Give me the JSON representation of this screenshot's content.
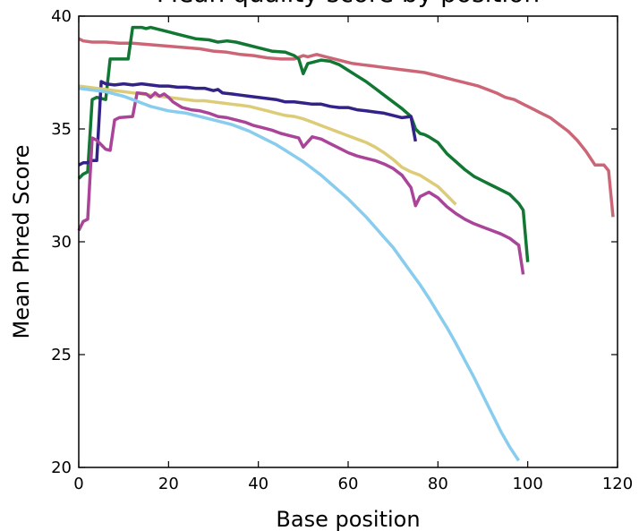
{
  "chart_data": {
    "type": "line",
    "title": "Mean quality score by position",
    "xlabel": "Base position",
    "ylabel": "Mean Phred Score",
    "xlim": [
      0,
      120
    ],
    "ylim": [
      20,
      40
    ],
    "xticks": [
      0,
      20,
      40,
      60,
      80,
      100,
      120
    ],
    "yticks": [
      20,
      25,
      30,
      35,
      40
    ],
    "xtick_labels": [
      "0",
      "20",
      "40",
      "60",
      "80",
      "100",
      "120"
    ],
    "ytick_labels": [
      "20",
      "25",
      "30",
      "35",
      "40"
    ],
    "grid": false,
    "legend": "none",
    "series": [
      {
        "color": "#cc6677",
        "points": [
          [
            0,
            39.0
          ],
          [
            1,
            38.9
          ],
          [
            3,
            38.85
          ],
          [
            6,
            38.85
          ],
          [
            9,
            38.8
          ],
          [
            12,
            38.8
          ],
          [
            15,
            38.75
          ],
          [
            18,
            38.7
          ],
          [
            21,
            38.65
          ],
          [
            24,
            38.6
          ],
          [
            27,
            38.55
          ],
          [
            30,
            38.45
          ],
          [
            33,
            38.4
          ],
          [
            36,
            38.3
          ],
          [
            39,
            38.25
          ],
          [
            42,
            38.15
          ],
          [
            45,
            38.1
          ],
          [
            48,
            38.1
          ],
          [
            50,
            38.25
          ],
          [
            51,
            38.2
          ],
          [
            53,
            38.3
          ],
          [
            55,
            38.2
          ],
          [
            57,
            38.1
          ],
          [
            59,
            38.0
          ],
          [
            61,
            37.9
          ],
          [
            63,
            37.85
          ],
          [
            65,
            37.8
          ],
          [
            67,
            37.75
          ],
          [
            69,
            37.7
          ],
          [
            71,
            37.65
          ],
          [
            73,
            37.6
          ],
          [
            75,
            37.55
          ],
          [
            77,
            37.5
          ],
          [
            79,
            37.4
          ],
          [
            81,
            37.3
          ],
          [
            83,
            37.2
          ],
          [
            85,
            37.1
          ],
          [
            87,
            37.0
          ],
          [
            89,
            36.9
          ],
          [
            91,
            36.75
          ],
          [
            93,
            36.6
          ],
          [
            95,
            36.4
          ],
          [
            97,
            36.3
          ],
          [
            99,
            36.1
          ],
          [
            101,
            35.9
          ],
          [
            103,
            35.7
          ],
          [
            105,
            35.5
          ],
          [
            107,
            35.2
          ],
          [
            109,
            34.9
          ],
          [
            111,
            34.5
          ],
          [
            113,
            34.0
          ],
          [
            115,
            33.4
          ],
          [
            117,
            33.4
          ],
          [
            118,
            33.15
          ],
          [
            119,
            31.1
          ]
        ]
      },
      {
        "color": "#117733",
        "points": [
          [
            0,
            32.8
          ],
          [
            1,
            33.0
          ],
          [
            2,
            33.1
          ],
          [
            3,
            36.3
          ],
          [
            4,
            36.4
          ],
          [
            6,
            36.3
          ],
          [
            7,
            38.1
          ],
          [
            11,
            38.1
          ],
          [
            12,
            39.5
          ],
          [
            14,
            39.5
          ],
          [
            15,
            39.45
          ],
          [
            16,
            39.5
          ],
          [
            18,
            39.4
          ],
          [
            20,
            39.3
          ],
          [
            22,
            39.2
          ],
          [
            24,
            39.1
          ],
          [
            26,
            39.0
          ],
          [
            29,
            38.95
          ],
          [
            31,
            38.85
          ],
          [
            33,
            38.9
          ],
          [
            35,
            38.85
          ],
          [
            37,
            38.75
          ],
          [
            40,
            38.6
          ],
          [
            43,
            38.45
          ],
          [
            46,
            38.4
          ],
          [
            48,
            38.25
          ],
          [
            49,
            38.1
          ],
          [
            50,
            37.45
          ],
          [
            51,
            37.9
          ],
          [
            52,
            37.95
          ],
          [
            54,
            38.05
          ],
          [
            56,
            38.0
          ],
          [
            58,
            37.85
          ],
          [
            60,
            37.6
          ],
          [
            62,
            37.35
          ],
          [
            64,
            37.1
          ],
          [
            66,
            36.8
          ],
          [
            68,
            36.5
          ],
          [
            70,
            36.2
          ],
          [
            72,
            35.9
          ],
          [
            74,
            35.55
          ],
          [
            75,
            35.0
          ],
          [
            76,
            34.8
          ],
          [
            77,
            34.75
          ],
          [
            78,
            34.65
          ],
          [
            80,
            34.4
          ],
          [
            82,
            33.9
          ],
          [
            84,
            33.55
          ],
          [
            86,
            33.2
          ],
          [
            88,
            32.9
          ],
          [
            90,
            32.7
          ],
          [
            92,
            32.5
          ],
          [
            94,
            32.3
          ],
          [
            96,
            32.1
          ],
          [
            98,
            31.7
          ],
          [
            99,
            31.4
          ],
          [
            100,
            29.1
          ]
        ]
      },
      {
        "color": "#332288",
        "points": [
          [
            0,
            33.4
          ],
          [
            1,
            33.5
          ],
          [
            2,
            33.5
          ],
          [
            3,
            33.6
          ],
          [
            4,
            33.6
          ],
          [
            5,
            37.1
          ],
          [
            6,
            37.0
          ],
          [
            8,
            36.95
          ],
          [
            10,
            37.0
          ],
          [
            12,
            36.95
          ],
          [
            14,
            37.0
          ],
          [
            16,
            36.95
          ],
          [
            18,
            36.9
          ],
          [
            20,
            36.9
          ],
          [
            22,
            36.85
          ],
          [
            24,
            36.85
          ],
          [
            26,
            36.8
          ],
          [
            28,
            36.8
          ],
          [
            30,
            36.7
          ],
          [
            31,
            36.75
          ],
          [
            32,
            36.6
          ],
          [
            34,
            36.55
          ],
          [
            36,
            36.5
          ],
          [
            38,
            36.45
          ],
          [
            40,
            36.4
          ],
          [
            42,
            36.35
          ],
          [
            44,
            36.3
          ],
          [
            46,
            36.2
          ],
          [
            48,
            36.2
          ],
          [
            50,
            36.15
          ],
          [
            52,
            36.1
          ],
          [
            54,
            36.1
          ],
          [
            56,
            36.0
          ],
          [
            58,
            35.95
          ],
          [
            60,
            35.95
          ],
          [
            62,
            35.85
          ],
          [
            64,
            35.8
          ],
          [
            66,
            35.75
          ],
          [
            68,
            35.7
          ],
          [
            70,
            35.6
          ],
          [
            72,
            35.5
          ],
          [
            74,
            35.55
          ],
          [
            75,
            34.45
          ]
        ]
      },
      {
        "color": "#ddcc77",
        "points": [
          [
            0,
            36.9
          ],
          [
            2,
            36.85
          ],
          [
            4,
            36.8
          ],
          [
            6,
            36.75
          ],
          [
            8,
            36.7
          ],
          [
            10,
            36.65
          ],
          [
            12,
            36.6
          ],
          [
            14,
            36.55
          ],
          [
            16,
            36.5
          ],
          [
            18,
            36.45
          ],
          [
            20,
            36.4
          ],
          [
            22,
            36.35
          ],
          [
            24,
            36.3
          ],
          [
            26,
            36.25
          ],
          [
            28,
            36.25
          ],
          [
            30,
            36.2
          ],
          [
            32,
            36.15
          ],
          [
            34,
            36.1
          ],
          [
            36,
            36.05
          ],
          [
            38,
            36.0
          ],
          [
            40,
            35.9
          ],
          [
            42,
            35.8
          ],
          [
            44,
            35.7
          ],
          [
            46,
            35.6
          ],
          [
            48,
            35.55
          ],
          [
            50,
            35.45
          ],
          [
            52,
            35.3
          ],
          [
            54,
            35.15
          ],
          [
            56,
            35.0
          ],
          [
            58,
            34.85
          ],
          [
            60,
            34.7
          ],
          [
            62,
            34.55
          ],
          [
            64,
            34.4
          ],
          [
            66,
            34.2
          ],
          [
            68,
            33.95
          ],
          [
            70,
            33.65
          ],
          [
            72,
            33.3
          ],
          [
            74,
            33.1
          ],
          [
            76,
            32.95
          ],
          [
            78,
            32.7
          ],
          [
            80,
            32.45
          ],
          [
            82,
            32.05
          ],
          [
            84,
            31.65
          ]
        ]
      },
      {
        "color": "#aa4499",
        "points": [
          [
            0,
            30.5
          ],
          [
            1,
            30.9
          ],
          [
            2,
            31.0
          ],
          [
            3,
            34.6
          ],
          [
            4,
            34.5
          ],
          [
            5,
            34.3
          ],
          [
            6,
            34.1
          ],
          [
            7,
            34.05
          ],
          [
            8,
            35.4
          ],
          [
            9,
            35.5
          ],
          [
            12,
            35.55
          ],
          [
            13,
            36.6
          ],
          [
            15,
            36.55
          ],
          [
            16,
            36.4
          ],
          [
            17,
            36.6
          ],
          [
            18,
            36.45
          ],
          [
            19,
            36.55
          ],
          [
            20,
            36.4
          ],
          [
            21,
            36.2
          ],
          [
            23,
            35.95
          ],
          [
            25,
            35.85
          ],
          [
            27,
            35.8
          ],
          [
            29,
            35.7
          ],
          [
            31,
            35.55
          ],
          [
            33,
            35.5
          ],
          [
            35,
            35.4
          ],
          [
            37,
            35.3
          ],
          [
            39,
            35.15
          ],
          [
            41,
            35.05
          ],
          [
            43,
            34.95
          ],
          [
            45,
            34.8
          ],
          [
            47,
            34.7
          ],
          [
            49,
            34.6
          ],
          [
            50,
            34.2
          ],
          [
            52,
            34.65
          ],
          [
            54,
            34.55
          ],
          [
            56,
            34.35
          ],
          [
            58,
            34.15
          ],
          [
            60,
            33.95
          ],
          [
            62,
            33.8
          ],
          [
            64,
            33.7
          ],
          [
            66,
            33.6
          ],
          [
            68,
            33.45
          ],
          [
            70,
            33.25
          ],
          [
            72,
            32.95
          ],
          [
            74,
            32.4
          ],
          [
            75,
            31.6
          ],
          [
            76,
            32.0
          ],
          [
            78,
            32.2
          ],
          [
            80,
            31.95
          ],
          [
            82,
            31.55
          ],
          [
            84,
            31.25
          ],
          [
            86,
            31.0
          ],
          [
            88,
            30.8
          ],
          [
            90,
            30.65
          ],
          [
            92,
            30.5
          ],
          [
            94,
            30.35
          ],
          [
            96,
            30.15
          ],
          [
            98,
            29.85
          ],
          [
            99,
            28.55
          ]
        ]
      },
      {
        "color": "#88ccee",
        "points": [
          [
            0,
            36.8
          ],
          [
            2,
            36.75
          ],
          [
            4,
            36.7
          ],
          [
            6,
            36.65
          ],
          [
            8,
            36.55
          ],
          [
            10,
            36.45
          ],
          [
            12,
            36.3
          ],
          [
            14,
            36.15
          ],
          [
            16,
            36.0
          ],
          [
            18,
            35.9
          ],
          [
            20,
            35.8
          ],
          [
            22,
            35.75
          ],
          [
            24,
            35.7
          ],
          [
            26,
            35.6
          ],
          [
            28,
            35.5
          ],
          [
            30,
            35.4
          ],
          [
            32,
            35.3
          ],
          [
            34,
            35.2
          ],
          [
            36,
            35.05
          ],
          [
            38,
            34.9
          ],
          [
            40,
            34.7
          ],
          [
            42,
            34.5
          ],
          [
            44,
            34.3
          ],
          [
            46,
            34.05
          ],
          [
            48,
            33.8
          ],
          [
            50,
            33.55
          ],
          [
            52,
            33.25
          ],
          [
            54,
            32.95
          ],
          [
            56,
            32.6
          ],
          [
            58,
            32.25
          ],
          [
            60,
            31.9
          ],
          [
            62,
            31.5
          ],
          [
            64,
            31.1
          ],
          [
            66,
            30.65
          ],
          [
            68,
            30.2
          ],
          [
            70,
            29.75
          ],
          [
            72,
            29.2
          ],
          [
            74,
            28.65
          ],
          [
            76,
            28.1
          ],
          [
            78,
            27.5
          ],
          [
            80,
            26.85
          ],
          [
            82,
            26.2
          ],
          [
            84,
            25.5
          ],
          [
            86,
            24.75
          ],
          [
            88,
            24.0
          ],
          [
            90,
            23.2
          ],
          [
            92,
            22.4
          ],
          [
            94,
            21.6
          ],
          [
            96,
            20.9
          ],
          [
            98,
            20.3
          ]
        ]
      }
    ]
  }
}
